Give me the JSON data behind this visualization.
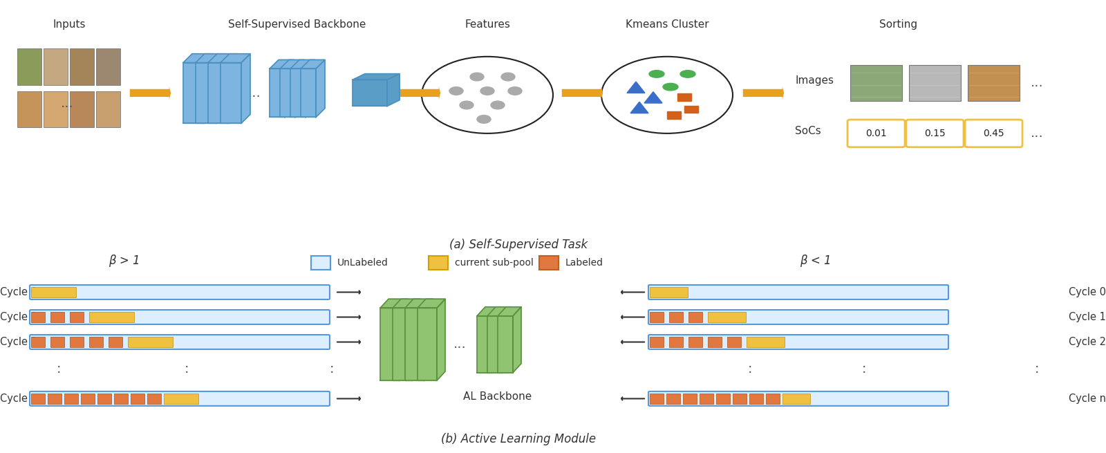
{
  "bg_color": "#ffffff",
  "top_label_color": "#333333",
  "arrow_color": "#E8A020",
  "arrow_dark": "#555555",
  "blue_layer_face": "#7EB5E0",
  "blue_layer_edge": "#4A90C0",
  "blue_box_face": "#5A9EC8",
  "green_layer_face": "#90C470",
  "green_layer_edge": "#5A9040",
  "circle_edge": "#222222",
  "gray_dot_color": "#aaaaaa",
  "green_dot_color": "#4CAF50",
  "blue_tri_color": "#3A6EC8",
  "orange_sq_color": "#D2601A",
  "yellow_bar_color": "#F0C040",
  "orange_bar_color": "#E07840",
  "unlabeled_color": "#DDEEFF",
  "unlabeled_edge": "#5599DD",
  "soc_box_color": "#F0C040",
  "caption_a": "(a) Self-Supervised Task",
  "caption_b": "(b) Active Learning Module",
  "legend_items": [
    "UnLabeled",
    "current sub-pool",
    "Labeled"
  ],
  "legend_colors": [
    "#DDEEFF",
    "#F0C040",
    "#E07840"
  ],
  "legend_edges": [
    "#5599DD",
    "#D0A000",
    "#C06020"
  ],
  "soc_values": [
    "0.01",
    "0.15",
    "0.45"
  ],
  "cycle_labels": [
    "Cycle 0",
    "Cycle 1",
    "Cycle 2",
    "⋮",
    "Cycle n"
  ],
  "beta_gt1": "β > 1",
  "beta_lt1": "β < 1",
  "al_backbone_label": "AL Backbone",
  "inputs_label": "Inputs",
  "ssb_label": "Self-Supervised Backbone",
  "features_label": "Features",
  "kmeans_label": "Kmeans Cluster",
  "sorting_label": "Sorting",
  "images_label": "Images",
  "socs_label": "SoCs"
}
